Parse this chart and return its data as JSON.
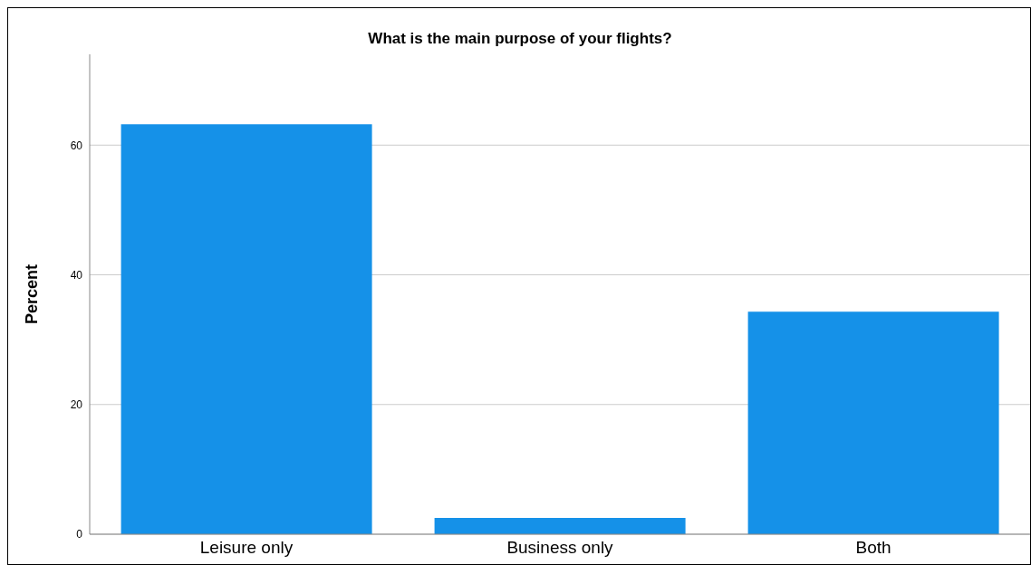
{
  "chart_data": {
    "type": "bar",
    "title": "What is the main purpose of your flights?",
    "ylabel": "Percent",
    "categories": [
      "Leisure only",
      "Business only",
      "Both"
    ],
    "values": [
      63.2,
      2.5,
      34.3
    ],
    "color": "#1591e8",
    "ylim": [
      0,
      74
    ],
    "yticks": [
      0,
      20,
      40,
      60
    ],
    "grid": "y"
  }
}
